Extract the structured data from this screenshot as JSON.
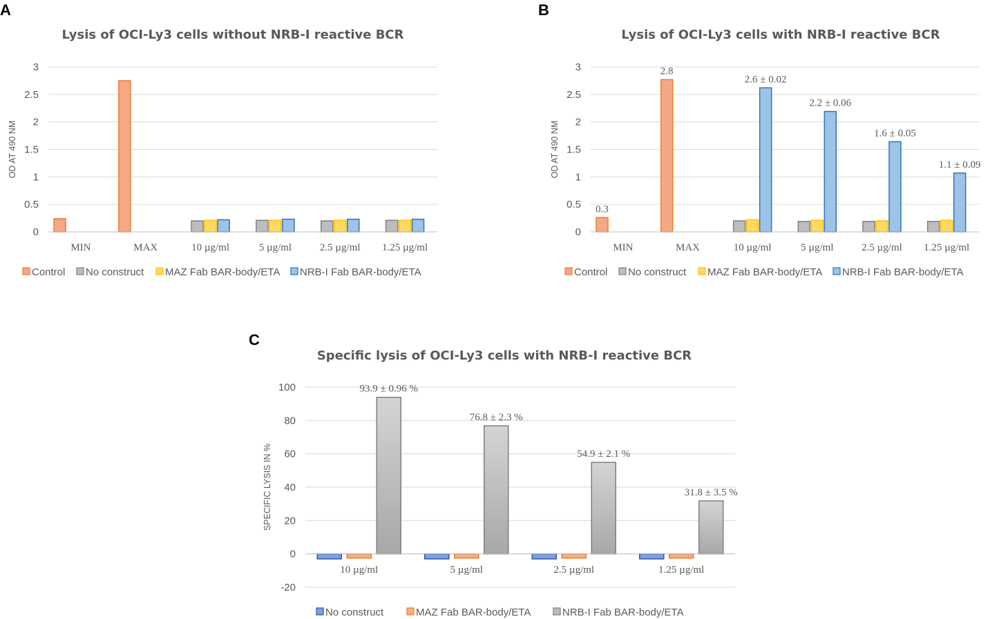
{
  "panel_letters": {
    "a": "A",
    "b": "B",
    "c": "C"
  },
  "colors": {
    "control": "#f4a886",
    "control_stroke": "#ed7d31",
    "no_construct": "#bdbdbd",
    "no_construct_stroke": "#7f7f7f",
    "maz": "#ffd966",
    "maz_stroke": "#ffc000",
    "nrb": "#9dc3e6",
    "nrb_stroke": "#2e75b6",
    "c_no_construct": "#7f9fe0",
    "c_no_construct_stroke": "#2f55a4",
    "c_maz": "#f4b183",
    "c_maz_stroke": "#ed7d31",
    "c_nrb": "#c0c0c0",
    "c_nrb_stroke": "#7f7f7f",
    "grid": "#d9d9d9",
    "text": "#595959"
  },
  "chart_data": [
    {
      "id": "A",
      "type": "bar",
      "title": "Lysis of OCI-Ly3 cells without NRB-I reactive BCR",
      "ylabel": "OD AT 490 NM",
      "xlabel": "",
      "ylim": [
        0,
        3
      ],
      "yticks": [
        "0",
        "0.5",
        "1",
        "1.5",
        "2",
        "2.5",
        "3"
      ],
      "ytick_values": [
        0,
        0.5,
        1,
        1.5,
        2,
        2.5,
        3
      ],
      "categories": [
        "MIN",
        "MAX",
        "10 µg/ml",
        "5 µg/ml",
        "2.5 µg/ml",
        "1.25 µg/ml"
      ],
      "legend": [
        "Control",
        "No construct",
        "MAZ Fab BAR-body/ETA",
        "NRB-I Fab BAR-body/ETA"
      ],
      "legend_position": "bottom",
      "series": [
        {
          "name": "Control",
          "values": [
            0.24,
            2.75,
            null,
            null,
            null,
            null
          ]
        },
        {
          "name": "No construct",
          "values": [
            null,
            null,
            0.2,
            0.21,
            0.2,
            0.21
          ]
        },
        {
          "name": "MAZ Fab BAR-body/ETA",
          "values": [
            null,
            null,
            0.21,
            0.21,
            0.21,
            0.21
          ]
        },
        {
          "name": "NRB-I Fab BAR-body/ETA",
          "values": [
            null,
            null,
            0.22,
            0.23,
            0.23,
            0.23
          ]
        }
      ],
      "data_labels": []
    },
    {
      "id": "B",
      "type": "bar",
      "title": "Lysis of OCI-Ly3 cells with NRB-I reactive BCR",
      "ylabel": "OD AT 490 NM",
      "xlabel": "",
      "ylim": [
        0,
        3
      ],
      "yticks": [
        "0",
        "0.5",
        "1",
        "1.5",
        "2",
        "2.5",
        "3"
      ],
      "ytick_values": [
        0,
        0.5,
        1,
        1.5,
        2,
        2.5,
        3
      ],
      "categories": [
        "MIN",
        "MAX",
        "10 µg/ml",
        "5 µg/ml",
        "2.5 µg/ml",
        "1.25 µg/ml"
      ],
      "legend": [
        "Control",
        "No construct",
        "MAZ Fab BAR-body/ETA",
        "NRB-I Fab BAR-body/ETA"
      ],
      "legend_position": "bottom",
      "series": [
        {
          "name": "Control",
          "values": [
            0.26,
            2.77,
            null,
            null,
            null,
            null
          ]
        },
        {
          "name": "No construct",
          "values": [
            null,
            null,
            0.2,
            0.19,
            0.19,
            0.19
          ]
        },
        {
          "name": "MAZ Fab BAR-body/ETA",
          "values": [
            null,
            null,
            0.22,
            0.21,
            0.2,
            0.21
          ]
        },
        {
          "name": "NRB-I Fab BAR-body/ETA",
          "values": [
            null,
            null,
            2.62,
            2.19,
            1.64,
            1.07
          ]
        }
      ],
      "data_labels": [
        {
          "series": 0,
          "index": 0,
          "text": "0.3"
        },
        {
          "series": 0,
          "index": 1,
          "text": "2.8"
        },
        {
          "series": 3,
          "index": 2,
          "text": "2.6 ± 0.02"
        },
        {
          "series": 3,
          "index": 3,
          "text": "2.2 ± 0.06"
        },
        {
          "series": 3,
          "index": 4,
          "text": "1.6 ± 0.05"
        },
        {
          "series": 3,
          "index": 5,
          "text": "1.1 ± 0.09"
        }
      ]
    },
    {
      "id": "C",
      "type": "bar",
      "title": "Specific lysis of OCI-Ly3 cells with NRB-I reactive BCR",
      "ylabel": "SPECIFIC LYSIS IN %",
      "xlabel": "",
      "ylim": [
        -20,
        100
      ],
      "yticks": [
        "-20",
        "0",
        "20",
        "40",
        "60",
        "80",
        "100"
      ],
      "ytick_values": [
        -20,
        0,
        20,
        40,
        60,
        80,
        100
      ],
      "categories": [
        "10 µg/ml",
        "5 µg/ml",
        "2.5 µg/ml",
        "1.25 µg/ml"
      ],
      "legend": [
        "No construct",
        "MAZ Fab BAR-body/ETA",
        "NRB-I Fab BAR-body/ETA"
      ],
      "legend_position": "bottom",
      "series": [
        {
          "name": "No construct",
          "values": [
            -3,
            -3,
            -3,
            -3
          ]
        },
        {
          "name": "MAZ Fab BAR-body/ETA",
          "values": [
            -2.5,
            -2.5,
            -2.5,
            -2.5
          ]
        },
        {
          "name": "NRB-I Fab BAR-body/ETA",
          "values": [
            93.9,
            76.8,
            54.9,
            31.8
          ]
        }
      ],
      "data_labels": [
        {
          "series": 2,
          "index": 0,
          "text": "93.9 ± 0.96 %"
        },
        {
          "series": 2,
          "index": 1,
          "text": "76.8 ± 2.3 %"
        },
        {
          "series": 2,
          "index": 2,
          "text": "54.9 ± 2.1 %"
        },
        {
          "series": 2,
          "index": 3,
          "text": "31.8 ± 3.5 %"
        }
      ]
    }
  ]
}
